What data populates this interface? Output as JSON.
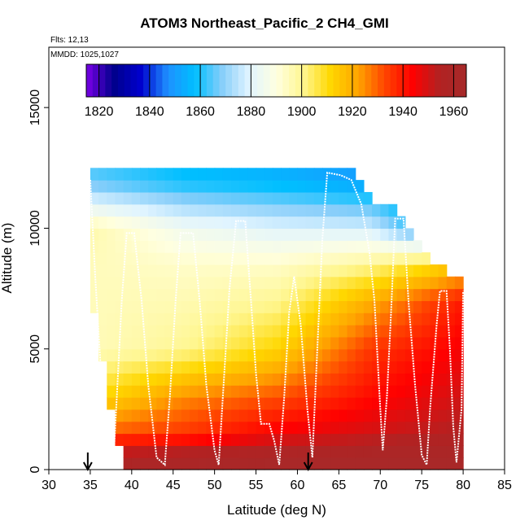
{
  "chart_data": {
    "type": "heatmap",
    "title": "ATOM3 Northeast_Pacific_2 CH4_GMI",
    "flights_label": "Flts: 12,13",
    "dates_label": "MMDD: 1025,1027",
    "xlabel": "Latitude (deg N)",
    "ylabel": "Altitude (m)",
    "xlim": [
      30,
      85
    ],
    "ylim": [
      0,
      17500
    ],
    "x_ticks": [
      "30",
      "35",
      "40",
      "45",
      "50",
      "55",
      "60",
      "65",
      "70",
      "75",
      "80",
      "85"
    ],
    "y_ticks": [
      "0",
      "5000",
      "10000",
      "15000"
    ],
    "colorbar": {
      "min": 1815,
      "max": 1965,
      "tick_labels": [
        "1820",
        "1840",
        "1860",
        "1880",
        "1900",
        "1920",
        "1940",
        "1960"
      ],
      "colors": [
        "#7a00e8",
        "#00008b",
        "#0000cd",
        "#1e90ff",
        "#00bfff",
        "#87cefa",
        "#e0f4ff",
        "#ffffe0",
        "#fff68f",
        "#ffd700",
        "#ffa500",
        "#ff4500",
        "#ff0000",
        "#b22222",
        "#a52a2a"
      ]
    },
    "field": {
      "lat_range": [
        35,
        80
      ],
      "alt_step": 500,
      "profile": [
        {
          "alt": 500,
          "values": [
            1958,
            1960,
            1962,
            1962,
            1962
          ]
        },
        {
          "alt": 1500,
          "values": [
            1930,
            1935,
            1945,
            1950,
            1955
          ]
        },
        {
          "alt": 3000,
          "values": [
            1910,
            1925,
            1932,
            1942,
            1950
          ]
        },
        {
          "alt": 5000,
          "values": [
            1895,
            1900,
            1912,
            1935,
            1945
          ]
        },
        {
          "alt": 7000,
          "values": [
            1895,
            1896,
            1900,
            1920,
            1940
          ]
        },
        {
          "alt": 8500,
          "values": [
            1895,
            1893,
            1893,
            1900,
            1915
          ]
        },
        {
          "alt": 10000,
          "values": [
            1897,
            1885,
            1880,
            1878,
            1845
          ]
        },
        {
          "alt": 12000,
          "values": [
            1865,
            1858,
            1855,
            1850,
            1840
          ]
        }
      ],
      "max_alt_by_lat": [
        {
          "lat": 35,
          "alt": 12500
        },
        {
          "lat": 66,
          "alt": 12500
        },
        {
          "lat": 69,
          "alt": 11000
        },
        {
          "lat": 72,
          "alt": 10500
        },
        {
          "lat": 76,
          "alt": 8500
        },
        {
          "lat": 80,
          "alt": 7500
        }
      ],
      "min_alt_by_lat": [
        {
          "lat": 35,
          "alt": 7500
        },
        {
          "lat": 37,
          "alt": 3500
        },
        {
          "lat": 38,
          "alt": 2000
        },
        {
          "lat": 39,
          "alt": 500
        },
        {
          "lat": 80,
          "alt": 0
        }
      ]
    },
    "flight_track": [
      [
        35.0,
        12000
      ],
      [
        35.6,
        8000
      ],
      [
        36.3,
        4000
      ],
      [
        37.2,
        1000
      ],
      [
        37.8,
        400
      ],
      [
        38.2,
        3000
      ],
      [
        38.8,
        7000
      ],
      [
        39.4,
        9800
      ],
      [
        40.3,
        9800
      ],
      [
        41.2,
        7000
      ],
      [
        42.0,
        3500
      ],
      [
        43.0,
        500
      ],
      [
        44.0,
        200
      ],
      [
        44.6,
        3000
      ],
      [
        45.3,
        7000
      ],
      [
        45.9,
        9800
      ],
      [
        47.4,
        9800
      ],
      [
        48.2,
        7000
      ],
      [
        49.0,
        3500
      ],
      [
        50.0,
        800
      ],
      [
        50.5,
        200
      ],
      [
        51.0,
        3000
      ],
      [
        51.8,
        7500
      ],
      [
        52.6,
        10300
      ],
      [
        53.7,
        10300
      ],
      [
        54.4,
        7000
      ],
      [
        55.0,
        4000
      ],
      [
        55.6,
        1900
      ],
      [
        56.6,
        1900
      ],
      [
        57.2,
        1200
      ],
      [
        57.8,
        200
      ],
      [
        58.4,
        3000
      ],
      [
        59.0,
        6500
      ],
      [
        59.6,
        8000
      ],
      [
        60.4,
        6000
      ],
      [
        61.2,
        2500
      ],
      [
        61.8,
        500
      ],
      [
        62.4,
        5000
      ],
      [
        63.0,
        9500
      ],
      [
        63.6,
        12300
      ],
      [
        65.2,
        12200
      ],
      [
        66.5,
        12000
      ],
      [
        67.7,
        11000
      ],
      [
        68.7,
        9000
      ],
      [
        69.3,
        7000
      ],
      [
        70.0,
        2500
      ],
      [
        70.3,
        800
      ],
      [
        70.8,
        3000
      ],
      [
        71.3,
        6500
      ],
      [
        71.8,
        10400
      ],
      [
        72.8,
        10400
      ],
      [
        73.4,
        7000
      ],
      [
        74.2,
        3500
      ],
      [
        75.0,
        600
      ],
      [
        75.6,
        200
      ],
      [
        76.0,
        2500
      ],
      [
        76.8,
        6000
      ],
      [
        77.2,
        7400
      ],
      [
        78.0,
        7400
      ],
      [
        78.4,
        5000
      ],
      [
        78.8,
        1800
      ],
      [
        79.2,
        300
      ],
      [
        79.8,
        2500
      ],
      [
        80.0,
        7400
      ]
    ],
    "arrows": [
      {
        "lat": 34.7,
        "label": ""
      },
      {
        "lat": 61.3,
        "label": ""
      }
    ]
  }
}
